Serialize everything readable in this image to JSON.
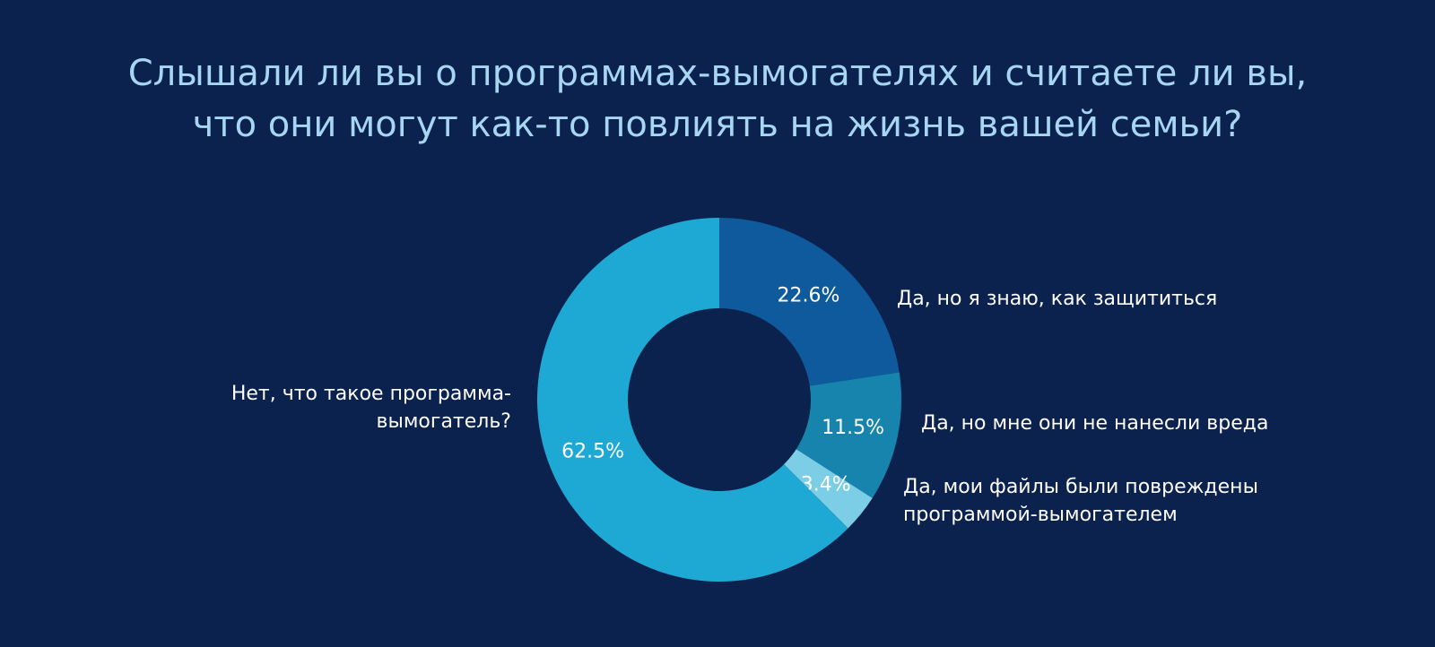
{
  "chart_data": {
    "type": "donut",
    "title": [
      "Слышали ли вы о программах-вымогателях и считаете ли вы,",
      "что они могут как-то повлиять на жизнь вашей семьи?"
    ],
    "categories": [
      "Да, но я знаю, как защититься",
      "Да, но мне они не нанесли вреда",
      "Да, мои файлы были повреждены программой-вымогателем",
      "Нет, что такое программа-вымогатель?"
    ],
    "values": [
      22.6,
      11.5,
      3.4,
      62.5
    ],
    "value_labels": [
      "22.6%",
      "11.5%",
      "3.4%",
      "62.5%"
    ],
    "colors": [
      "#0f5a9c",
      "#1784ae",
      "#7ccde6",
      "#1ea9d5"
    ]
  }
}
